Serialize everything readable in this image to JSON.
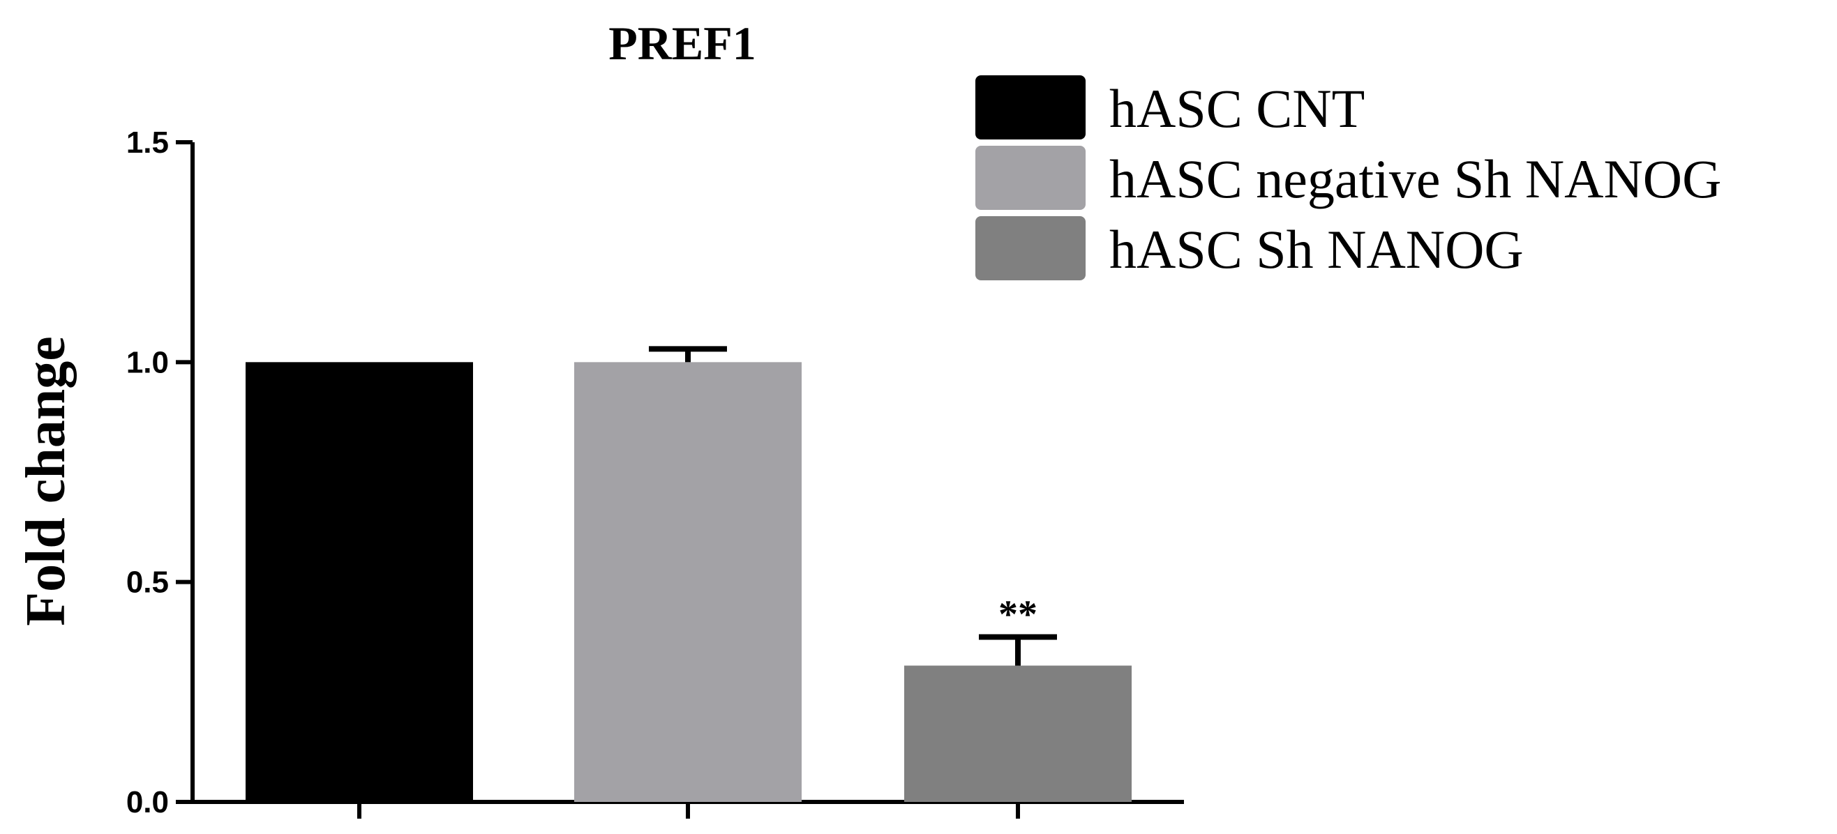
{
  "chart_data": {
    "type": "bar",
    "title": "PREF1",
    "ylabel": "Fold change",
    "xlabel": "",
    "ylim": [
      0,
      1.5
    ],
    "yticks": [
      0.0,
      0.5,
      1.0,
      1.5
    ],
    "ytick_labels": [
      "0.0",
      "0.5",
      "1.0",
      "1.5"
    ],
    "series": [
      {
        "name": "hASC CNT",
        "value": 1.0,
        "error": 0.0,
        "color": "#000000",
        "annotation": ""
      },
      {
        "name": "hASC negative Sh NANOG",
        "value": 1.0,
        "error": 0.03,
        "color": "#a3a2a6",
        "annotation": ""
      },
      {
        "name": "hASC Sh NANOG",
        "value": 0.31,
        "error": 0.065,
        "color": "#808080",
        "annotation": "**"
      }
    ],
    "legend_position": "top-right",
    "grid": false
  }
}
